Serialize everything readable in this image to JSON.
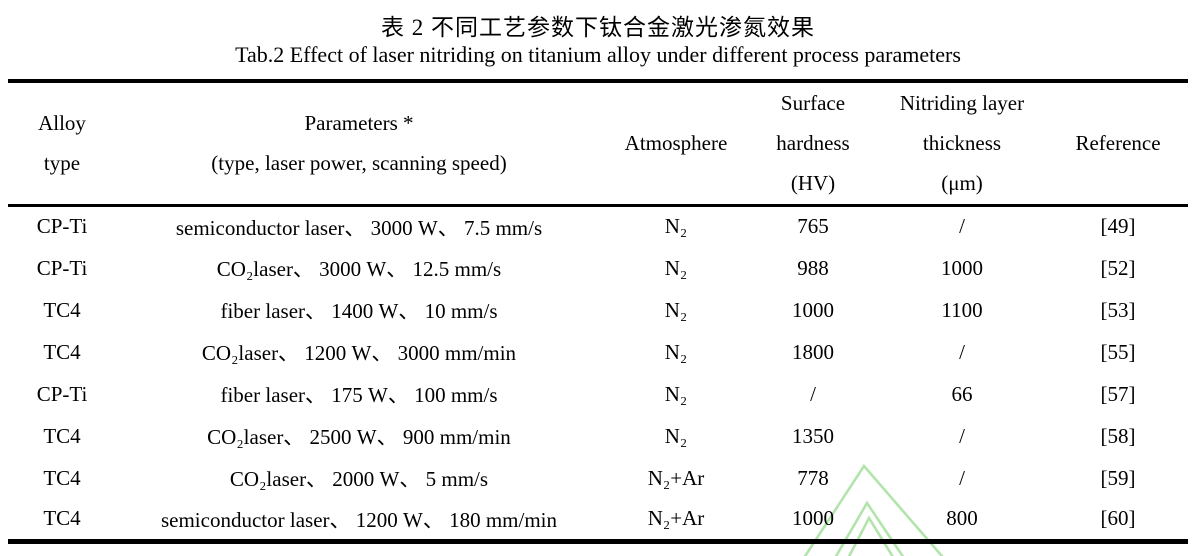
{
  "captions": {
    "title_zh": "表 2  不同工艺参数下钛合金激光渗氮效果",
    "title_en": "Tab.2 Effect of laser nitriding on titanium alloy under different process parameters"
  },
  "table": {
    "columns": [
      {
        "id": "alloy-type",
        "lines": [
          "Alloy",
          "type"
        ]
      },
      {
        "id": "parameters",
        "lines": [
          "Parameters *",
          "(type, laser power, scanning speed)"
        ]
      },
      {
        "id": "atmosphere",
        "lines": [
          "Atmosphere"
        ]
      },
      {
        "id": "surface-hardness",
        "lines": [
          "Surface",
          "hardness",
          "(HV)"
        ]
      },
      {
        "id": "nitriding-thickness",
        "lines": [
          "Nitriding layer",
          "thickness",
          "(μm)"
        ]
      },
      {
        "id": "reference",
        "lines": [
          "Reference"
        ]
      }
    ],
    "rows": [
      [
        "CP-Ti",
        "semiconductor laser、 3000 W、 7.5 mm/s",
        "N₂",
        "765",
        "/",
        "[49]"
      ],
      [
        "CP-Ti",
        "CO₂laser、 3000 W、 12.5 mm/s",
        "N₂",
        "988",
        "1000",
        "[52]"
      ],
      [
        "TC4",
        "fiber laser、 1400 W、 10 mm/s",
        "N₂",
        "1000",
        "1100",
        "[53]"
      ],
      [
        "TC4",
        "CO₂laser、 1200 W、 3000 mm/min",
        "N₂",
        "1800",
        "/",
        "[55]"
      ],
      [
        "CP-Ti",
        "fiber laser、 175 W、 100 mm/s",
        "N₂",
        "/",
        "66",
        "[57]"
      ],
      [
        "TC4",
        "CO₂laser、 2500 W、 900 mm/min",
        "N₂",
        "1350",
        "/",
        "[58]"
      ],
      [
        "TC4",
        "CO₂laser、 2000 W、 5 mm/s",
        "N₂+Ar",
        "778",
        "/",
        "[59]"
      ],
      [
        "TC4",
        "semiconductor laser、 1200 W、 180 mm/min",
        "N₂+Ar",
        "1000",
        "800",
        "[60]"
      ]
    ]
  },
  "watermark": {
    "color": "#b2e4ab"
  }
}
